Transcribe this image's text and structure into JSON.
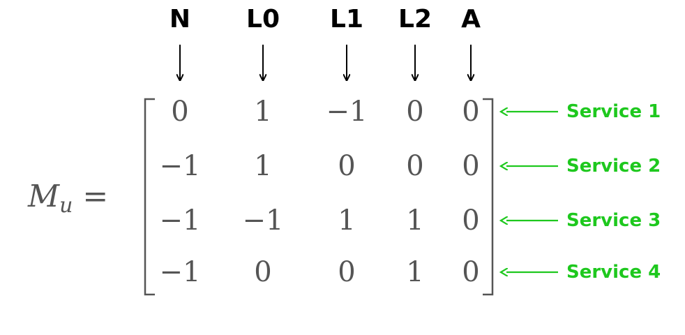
{
  "lhs": {
    "symbol": "M",
    "subscript": "u",
    "equals": "="
  },
  "columns": [
    "N",
    "L0",
    "L1",
    "L2",
    "A"
  ],
  "rows": [
    {
      "label": "Service 1",
      "values": [
        "0",
        "1",
        "−1",
        "0",
        "0"
      ]
    },
    {
      "label": "Service 2",
      "values": [
        "−1",
        "1",
        "0",
        "0",
        "0"
      ]
    },
    {
      "label": "Service 3",
      "values": [
        "−1",
        "−1",
        "1",
        "1",
        "0"
      ]
    },
    {
      "label": "Service 4",
      "values": [
        "−1",
        "0",
        "0",
        "1",
        "0"
      ]
    }
  ],
  "colors": {
    "header_text": "#000000",
    "matrix_text": "#555555",
    "label_color": "#1ec81e",
    "arrow_black": "#000000"
  }
}
